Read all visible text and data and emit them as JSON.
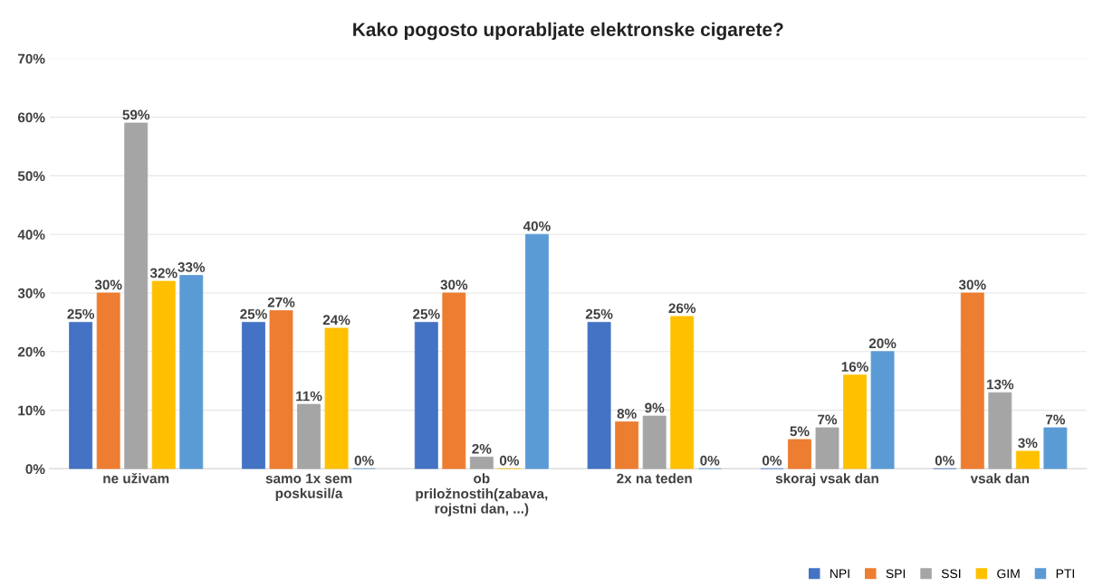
{
  "chart_data": {
    "type": "bar",
    "title": "Kako pogosto uporabljate elektronske cigarete?",
    "categories": [
      "ne uživam",
      "samo 1x sem\nposkusil/a",
      "ob\npriložnostih(zabava,\nrojstni dan, ...)",
      "2x na teden",
      "skoraj vsak dan",
      "vsak dan"
    ],
    "series": [
      {
        "name": "NPI",
        "color": "#4472c4",
        "values": [
          25,
          25,
          25,
          25,
          0,
          0
        ],
        "value_labels": [
          "25%",
          "25%",
          "25%",
          "25%",
          "0%",
          "0%"
        ]
      },
      {
        "name": "SPI",
        "color": "#ed7d31",
        "values": [
          30,
          27,
          30,
          8,
          5,
          30
        ],
        "value_labels": [
          "30%",
          "27%",
          "30%",
          "8%",
          "5%",
          "30%"
        ]
      },
      {
        "name": "SSI",
        "color": "#a5a5a5",
        "values": [
          59,
          11,
          2,
          9,
          7,
          13
        ],
        "value_labels": [
          "59%",
          "11%",
          "2%",
          "9%",
          "7%",
          "13%"
        ]
      },
      {
        "name": "GIM",
        "color": "#ffc000",
        "values": [
          32,
          24,
          0,
          26,
          16,
          3
        ],
        "value_labels": [
          "32%",
          "24%",
          "0%",
          "26%",
          "16%",
          "3%"
        ]
      },
      {
        "name": "PTI",
        "color": "#5b9bd5",
        "values": [
          33,
          0,
          40,
          0,
          20,
          7
        ],
        "value_labels": [
          "33%",
          "0%",
          "40%",
          "0%",
          "20%",
          "7%"
        ]
      }
    ],
    "ylim": [
      0,
      70
    ],
    "yticks": [
      {
        "value": 0,
        "label": "0%"
      },
      {
        "value": 10,
        "label": "10%"
      },
      {
        "value": 20,
        "label": "20%"
      },
      {
        "value": 30,
        "label": "30%"
      },
      {
        "value": 40,
        "label": "40%"
      },
      {
        "value": 50,
        "label": "50%"
      },
      {
        "value": 60,
        "label": "60%"
      },
      {
        "value": 70,
        "label": "70%"
      }
    ],
    "grid": "y",
    "legend": "bottom right"
  }
}
